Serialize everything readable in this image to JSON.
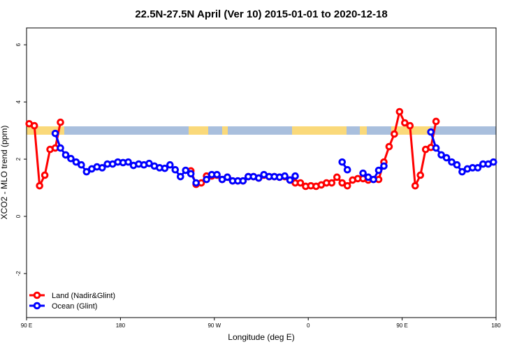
{
  "chart_data": {
    "type": "line",
    "title": "22.5N-27.5N April (Ver 10)   2015-01-01 to 2020-12-18",
    "xlabel": "Longitude (deg E)",
    "ylabel": "XCO2 - MLO trend (ppm)",
    "xlim": [
      90,
      540
    ],
    "ylim": [
      -3.54,
      6.59
    ],
    "xticks": [
      {
        "value": 90,
        "label": "90 E"
      },
      {
        "value": 180,
        "label": "180"
      },
      {
        "value": 270,
        "label": "90 W"
      },
      {
        "value": 360,
        "label": "0"
      },
      {
        "value": 450,
        "label": "90 E"
      },
      {
        "value": 540,
        "label": "180"
      }
    ],
    "yticks": [
      -2,
      0,
      2,
      4,
      6
    ],
    "legend": "bottom-left",
    "x": [
      92.5,
      97.5,
      102.5,
      107.5,
      112.5,
      117.5,
      122.5,
      127.5,
      132.5,
      137.5,
      142.5,
      147.5,
      152.5,
      157.5,
      162.5,
      167.5,
      172.5,
      177.5,
      182.5,
      187.5,
      192.5,
      197.5,
      202.5,
      207.5,
      212.5,
      217.5,
      222.5,
      227.5,
      232.5,
      237.5,
      242.5,
      247.5,
      252.5,
      257.5,
      262.5,
      267.5,
      272.5,
      277.5,
      282.5,
      287.5,
      292.5,
      297.5,
      302.5,
      307.5,
      312.5,
      317.5,
      322.5,
      327.5,
      332.5,
      337.5,
      342.5,
      347.5,
      352.5,
      357.5,
      362.5,
      367.5,
      372.5,
      377.5,
      382.5,
      387.5,
      392.5,
      397.5,
      402.5,
      407.5,
      412.5,
      417.5,
      422.5,
      427.5,
      432.5,
      437.5,
      442.5,
      447.5,
      452.5,
      457.5,
      462.5,
      467.5,
      472.5,
      477.5,
      482.5,
      487.5,
      492.5,
      497.5,
      502.5,
      507.5,
      512.5,
      517.5,
      522.5,
      527.5,
      532.5,
      537.5
    ],
    "series": [
      {
        "name": "Land (Nadir&Glint)",
        "color": "#ff0000",
        "values": [
          3.24,
          3.17,
          1.07,
          1.44,
          2.34,
          2.39,
          3.29,
          null,
          null,
          null,
          null,
          null,
          null,
          null,
          null,
          null,
          null,
          null,
          null,
          null,
          null,
          null,
          null,
          null,
          null,
          null,
          null,
          null,
          null,
          null,
          null,
          1.59,
          1.12,
          1.17,
          1.41,
          1.41,
          1.44,
          1.29,
          1.37,
          1.24,
          1.24,
          1.24,
          1.39,
          1.39,
          1.34,
          1.44,
          1.39,
          1.39,
          1.37,
          1.39,
          1.27,
          1.17,
          1.17,
          1.05,
          1.07,
          1.05,
          1.1,
          1.17,
          1.17,
          1.37,
          1.17,
          1.07,
          1.27,
          1.32,
          1.32,
          1.27,
          1.29,
          1.29,
          1.9,
          2.44,
          2.88,
          3.66,
          3.27,
          3.17,
          1.07,
          1.44,
          2.34,
          2.41,
          3.32,
          null,
          null,
          null,
          null,
          null,
          null,
          null,
          null,
          null,
          null,
          null
        ]
      },
      {
        "name": "Ocean (Glint)",
        "color": "#0000ff",
        "values": [
          null,
          null,
          null,
          null,
          null,
          2.9,
          2.39,
          2.15,
          2.02,
          1.9,
          1.8,
          1.56,
          1.66,
          1.73,
          1.7,
          1.83,
          1.83,
          1.9,
          1.88,
          1.9,
          1.78,
          1.83,
          1.8,
          1.85,
          1.76,
          1.7,
          1.68,
          1.8,
          1.63,
          1.39,
          1.61,
          1.49,
          1.17,
          null,
          1.29,
          1.46,
          1.46,
          1.29,
          1.37,
          1.24,
          1.24,
          1.24,
          1.39,
          1.39,
          1.34,
          1.46,
          1.39,
          1.39,
          1.37,
          1.41,
          1.27,
          1.41,
          null,
          null,
          null,
          null,
          null,
          null,
          null,
          null,
          1.9,
          1.63,
          null,
          null,
          1.51,
          1.37,
          1.29,
          1.61,
          1.76,
          null,
          null,
          null,
          null,
          null,
          null,
          null,
          null,
          2.95,
          2.39,
          2.15,
          2.05,
          1.9,
          1.8,
          1.56,
          1.66,
          1.7,
          1.7,
          1.83,
          1.83,
          1.9
        ]
      }
    ]
  }
}
